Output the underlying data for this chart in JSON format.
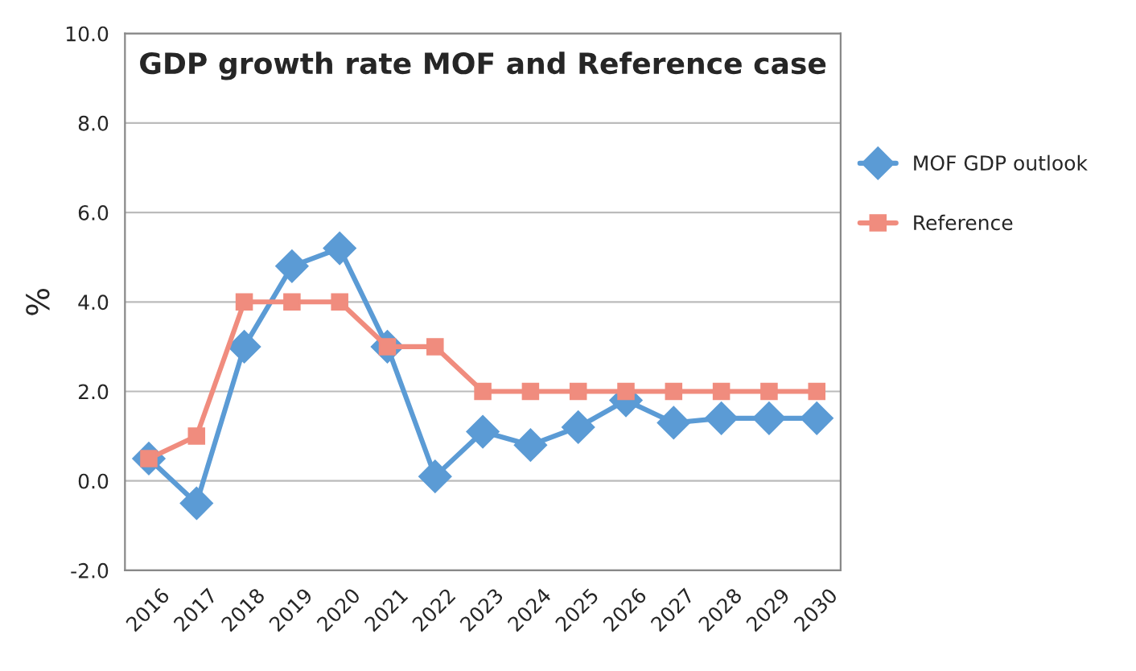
{
  "chart_data": {
    "type": "line",
    "title": "GDP growth rate MOF and Reference case",
    "ylabel": "%",
    "categories": [
      "2016",
      "2017",
      "2018",
      "2019",
      "2020",
      "2021",
      "2022",
      "2023",
      "2024",
      "2025",
      "2026",
      "2027",
      "2028",
      "2029",
      "2030"
    ],
    "series": [
      {
        "name": "MOF GDP outlook",
        "color": "#5b9bd5",
        "marker": "diamond",
        "values": [
          0.5,
          -0.5,
          3.0,
          4.8,
          5.2,
          3.0,
          0.1,
          1.1,
          0.8,
          1.2,
          1.8,
          1.3,
          1.4,
          1.4,
          1.4
        ]
      },
      {
        "name": "Reference",
        "color": "#f08c7e",
        "marker": "square",
        "values": [
          0.5,
          1.0,
          4.0,
          4.0,
          4.0,
          3.0,
          3.0,
          2.0,
          2.0,
          2.0,
          2.0,
          2.0,
          2.0,
          2.0,
          2.0
        ]
      }
    ],
    "ylim": [
      -2,
      10
    ],
    "yticks": [
      {
        "value": -2,
        "label": "-2.0"
      },
      {
        "value": 0,
        "label": "0.0"
      },
      {
        "value": 2,
        "label": "2.0"
      },
      {
        "value": 4,
        "label": "4.0"
      },
      {
        "value": 6,
        "label": "6.0"
      },
      {
        "value": 8,
        "label": "8.0"
      },
      {
        "value": 10,
        "label": "10.0"
      }
    ],
    "grid": "y",
    "legend": "right"
  }
}
